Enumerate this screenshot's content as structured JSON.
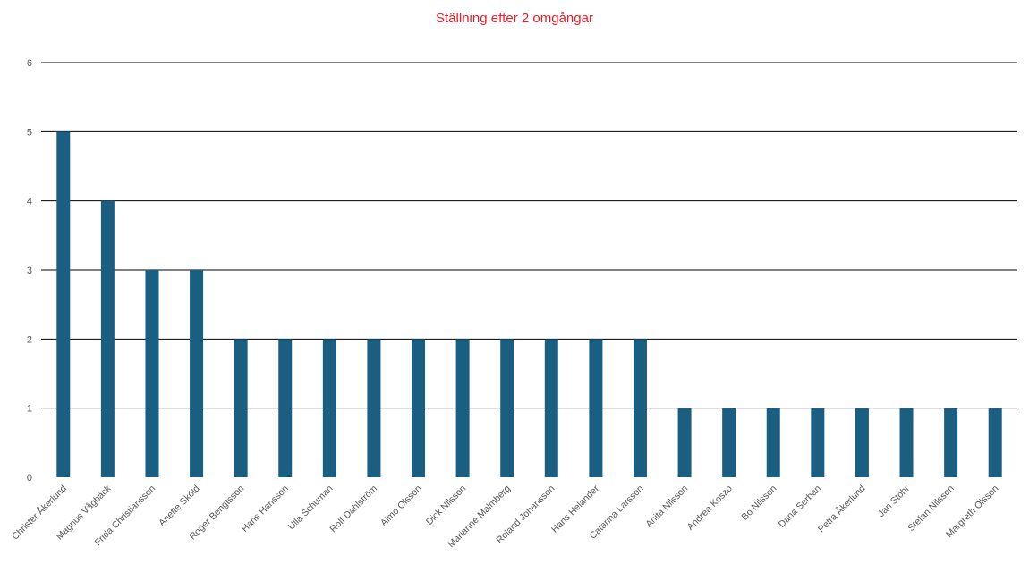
{
  "chart_data": {
    "type": "bar",
    "title": "Ställning efter 2 omgångar",
    "xlabel": "",
    "ylabel": "",
    "categories": [
      "Christer Åkerlund",
      "Magnus Vågbäck",
      "Frida Christiansson",
      "Anette Sköld",
      "Roger Bengtsson",
      "Hans Hansson",
      "Ulla Schuman",
      "Rolf Dahlström",
      "Aimo Olsson",
      "Dick Nilsson",
      "Marianne Malmberg",
      "Roland Johansson",
      "Hans Helander",
      "Catarina Larsson",
      "Anita Nilsson",
      "Andrea Koszo",
      "Bo Nilsson",
      "Dana Serban",
      "Petra Åkerlund",
      "Jan Stohr",
      "Stefan Nilsson",
      "Margreth Olsson"
    ],
    "values": [
      5,
      4,
      3,
      3,
      2,
      2,
      2,
      2,
      2,
      2,
      2,
      2,
      2,
      2,
      1,
      1,
      1,
      1,
      1,
      1,
      1,
      1
    ],
    "ylim": [
      0,
      6
    ],
    "yticks": [
      "0",
      "1",
      "2",
      "3",
      "4",
      "5",
      "6"
    ],
    "grid": true,
    "legend": "none",
    "colors": {
      "bar": "#1a5f82",
      "title": "#ee1c25",
      "grid": "#000000",
      "tick_text": "#555555"
    }
  }
}
